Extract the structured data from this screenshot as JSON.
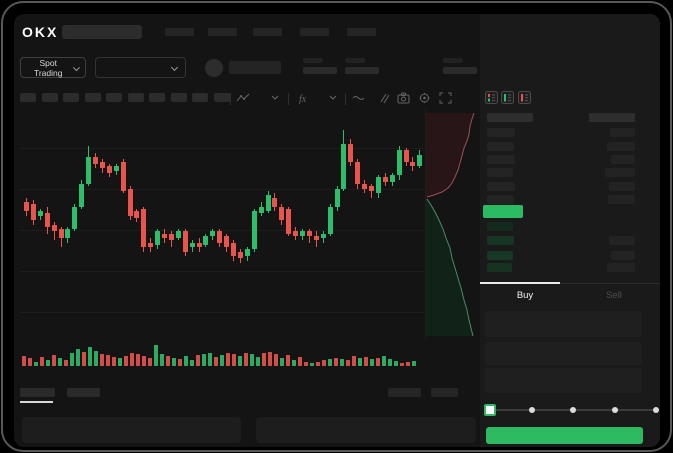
{
  "brand": {
    "logo_text": "OKX"
  },
  "top_nav": {
    "nav_item_count": 5
  },
  "market_bar": {
    "mode_label": "Spot Trading",
    "stat_group_count": 5
  },
  "chart_toolbar": {
    "interval_button_count": 10,
    "icons": [
      "chart-type-icon",
      "chart-type-chevron-icon",
      "indicators-fx-icon",
      "indicators-chevron-icon",
      "line-style-icon",
      "compare-icon",
      "camera-icon",
      "settings-icon",
      "fullscreen-icon"
    ]
  },
  "colors": {
    "up_green": "#2ebd6b",
    "down_red": "#e8544e",
    "buy_button_green": "#2eba60",
    "last_price_green": "#2bbb62",
    "depth_ask_fill": "#271518",
    "depth_bid_fill": "#112219",
    "depth_ask_line": "#9c5058",
    "depth_bid_line": "#4a8a6c"
  },
  "chart_data": {
    "type": "candlestick",
    "title": "",
    "note": "Skeleton trading UI - no axis tick labels visible; price values normalized 0-100 of pane height",
    "ylim": [
      0,
      100
    ],
    "grid": true,
    "gridline_count": 5,
    "candles_ochl": [
      [
        60,
        56,
        62,
        54
      ],
      [
        59,
        52,
        61,
        50
      ],
      [
        54,
        56,
        57,
        52
      ],
      [
        55,
        49,
        58,
        46
      ],
      [
        50,
        47,
        51,
        43
      ],
      [
        48,
        44,
        49,
        40
      ],
      [
        44,
        48,
        49,
        42
      ],
      [
        48,
        58,
        59,
        47
      ],
      [
        58,
        68,
        70,
        57
      ],
      [
        68,
        80,
        85,
        67
      ],
      [
        80,
        77,
        82,
        75
      ],
      [
        78,
        75,
        79,
        73
      ],
      [
        76,
        73,
        77,
        71
      ],
      [
        74,
        76,
        77,
        72
      ],
      [
        78,
        65,
        79,
        64
      ],
      [
        66,
        54,
        67,
        52
      ],
      [
        56,
        53,
        57,
        51
      ],
      [
        57,
        40,
        58,
        38
      ],
      [
        42,
        40,
        44,
        38
      ],
      [
        41,
        47,
        48,
        39
      ],
      [
        46,
        44,
        48,
        42
      ],
      [
        46,
        43,
        47,
        40
      ],
      [
        44,
        47,
        48,
        43
      ],
      [
        47,
        38,
        48,
        36
      ],
      [
        40,
        42,
        43,
        38
      ],
      [
        42,
        40,
        44,
        38
      ],
      [
        41,
        45,
        46,
        40
      ],
      [
        45,
        47,
        48,
        43
      ],
      [
        47,
        42,
        48,
        40
      ],
      [
        45,
        40,
        46,
        38
      ],
      [
        42,
        36,
        43,
        34
      ],
      [
        38,
        35,
        39,
        33
      ],
      [
        36,
        39,
        40,
        34
      ],
      [
        39,
        56,
        57,
        38
      ],
      [
        55,
        58,
        60,
        54
      ],
      [
        56,
        63,
        65,
        55
      ],
      [
        62,
        58,
        64,
        56
      ],
      [
        58,
        52,
        59,
        50
      ],
      [
        57,
        46,
        58,
        45
      ],
      [
        47,
        45,
        49,
        43
      ],
      [
        45,
        47,
        48,
        43
      ],
      [
        47,
        45,
        48,
        42
      ],
      [
        45,
        43,
        47,
        40
      ],
      [
        44,
        46,
        47,
        42
      ],
      [
        46,
        58,
        59,
        45
      ],
      [
        58,
        66,
        67,
        56
      ],
      [
        66,
        86,
        92,
        65
      ],
      [
        86,
        78,
        88,
        76
      ],
      [
        78,
        68,
        79,
        66
      ],
      [
        68,
        66,
        70,
        64
      ],
      [
        67,
        65,
        68,
        62
      ],
      [
        64,
        71,
        72,
        62
      ],
      [
        71,
        69,
        73,
        67
      ],
      [
        69,
        72,
        73,
        67
      ],
      [
        72,
        83,
        85,
        70
      ],
      [
        83,
        78,
        84,
        76
      ],
      [
        78,
        76,
        80,
        74
      ],
      [
        76,
        81,
        83,
        75
      ]
    ],
    "volume_bars": [
      [
        10,
        "r"
      ],
      [
        8,
        "r"
      ],
      [
        4,
        "g"
      ],
      [
        9,
        "r"
      ],
      [
        6,
        "g"
      ],
      [
        11,
        "r"
      ],
      [
        8,
        "g"
      ],
      [
        6,
        "r"
      ],
      [
        13,
        "g"
      ],
      [
        17,
        "g"
      ],
      [
        14,
        "r"
      ],
      [
        19,
        "g"
      ],
      [
        15,
        "g"
      ],
      [
        12,
        "r"
      ],
      [
        11,
        "r"
      ],
      [
        9,
        "r"
      ],
      [
        8,
        "g"
      ],
      [
        10,
        "r"
      ],
      [
        13,
        "r"
      ],
      [
        12,
        "r"
      ],
      [
        10,
        "r"
      ],
      [
        8,
        "r"
      ],
      [
        21,
        "g"
      ],
      [
        12,
        "g"
      ],
      [
        10,
        "r"
      ],
      [
        8,
        "g"
      ],
      [
        7,
        "r"
      ],
      [
        10,
        "g"
      ],
      [
        6,
        "g"
      ],
      [
        11,
        "r"
      ],
      [
        12,
        "g"
      ],
      [
        13,
        "g"
      ],
      [
        9,
        "r"
      ],
      [
        11,
        "g"
      ],
      [
        13,
        "r"
      ],
      [
        12,
        "r"
      ],
      [
        10,
        "g"
      ],
      [
        13,
        "r"
      ],
      [
        12,
        "g"
      ],
      [
        9,
        "g"
      ],
      [
        13,
        "r"
      ],
      [
        14,
        "r"
      ],
      [
        12,
        "r"
      ],
      [
        8,
        "g"
      ],
      [
        11,
        "r"
      ],
      [
        6,
        "g"
      ],
      [
        9,
        "r"
      ],
      [
        4,
        "r"
      ],
      [
        3,
        "g"
      ],
      [
        4,
        "r"
      ],
      [
        6,
        "r"
      ],
      [
        7,
        "g"
      ],
      [
        8,
        "r"
      ],
      [
        7,
        "g"
      ],
      [
        6,
        "r"
      ],
      [
        10,
        "r"
      ],
      [
        8,
        "g"
      ],
      [
        9,
        "r"
      ],
      [
        7,
        "g"
      ],
      [
        8,
        "r"
      ],
      [
        10,
        "g"
      ],
      [
        7,
        "g"
      ],
      [
        5,
        "g"
      ],
      [
        3,
        "r"
      ],
      [
        4,
        "r"
      ],
      [
        5,
        "g"
      ]
    ]
  },
  "depth_chart": {
    "type": "area",
    "orientation": "vertical",
    "ask_curve": [
      [
        48,
        3
      ],
      [
        46,
        9
      ],
      [
        44,
        16
      ],
      [
        43,
        24
      ],
      [
        41,
        31
      ],
      [
        38,
        38
      ],
      [
        36,
        46
      ],
      [
        34,
        53
      ],
      [
        32,
        60
      ],
      [
        29,
        67
      ],
      [
        26,
        73
      ],
      [
        22,
        78
      ],
      [
        16,
        82
      ],
      [
        8,
        85
      ],
      [
        1,
        87
      ]
    ],
    "bid_curve": [
      [
        1,
        89
      ],
      [
        5,
        95
      ],
      [
        9,
        102
      ],
      [
        13,
        110
      ],
      [
        17,
        119
      ],
      [
        20,
        128
      ],
      [
        24,
        138
      ],
      [
        26,
        148
      ],
      [
        29,
        158
      ],
      [
        32,
        168
      ],
      [
        35,
        178
      ],
      [
        38,
        190
      ],
      [
        41,
        200
      ],
      [
        43,
        210
      ],
      [
        45,
        218
      ],
      [
        47,
        226
      ]
    ]
  },
  "order_book": {
    "view_icons": [
      "book-combined-icon",
      "book-bids-icon",
      "book-asks-icon"
    ],
    "ask_price_widths": [
      28,
      27,
      28,
      26,
      28,
      27
    ],
    "ask_amount_widths": [
      25,
      28,
      24,
      30,
      26,
      27
    ],
    "bid_price_widths": [
      26,
      27,
      26,
      25
    ],
    "bid_amount_widths": [
      0,
      26,
      24,
      28
    ],
    "bid_bar_shades": [
      "#132a1c",
      "#163523",
      "#173824",
      "#163322"
    ]
  },
  "trade_panel": {
    "buy_tab_label": "Buy",
    "sell_tab_label": "Sell",
    "field_count": 3,
    "slider": {
      "stop_count": 5,
      "active_index": 0
    },
    "submit_button_label": ""
  },
  "bottom_panel": {
    "tab_widths": [
      35,
      33
    ],
    "right_skeleton_widths": [
      33,
      27
    ],
    "panel_count": 2
  }
}
